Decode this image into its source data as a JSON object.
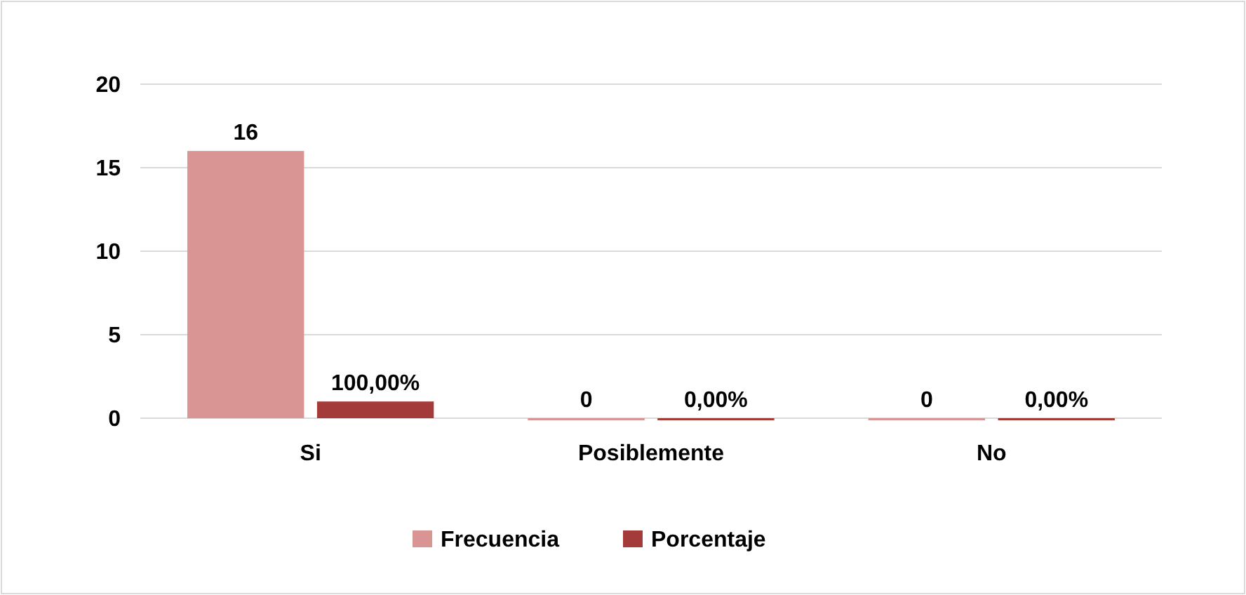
{
  "chart_data": {
    "type": "bar",
    "categories": [
      "Si",
      "Posiblemente",
      "No"
    ],
    "series": [
      {
        "name": "Frecuencia",
        "color": "#d99594",
        "values": [
          16,
          0,
          0
        ],
        "value_labels": [
          "16",
          "0",
          "0"
        ]
      },
      {
        "name": "Porcentaje",
        "color": "#a33b3a",
        "values": [
          1,
          0,
          0
        ],
        "value_labels": [
          "100,00%",
          "0,00%",
          "0,00%"
        ]
      }
    ],
    "ylim": [
      0,
      20
    ],
    "yticks": [
      0,
      5,
      10,
      15,
      20
    ],
    "grid": "y",
    "legend": "bottom"
  }
}
